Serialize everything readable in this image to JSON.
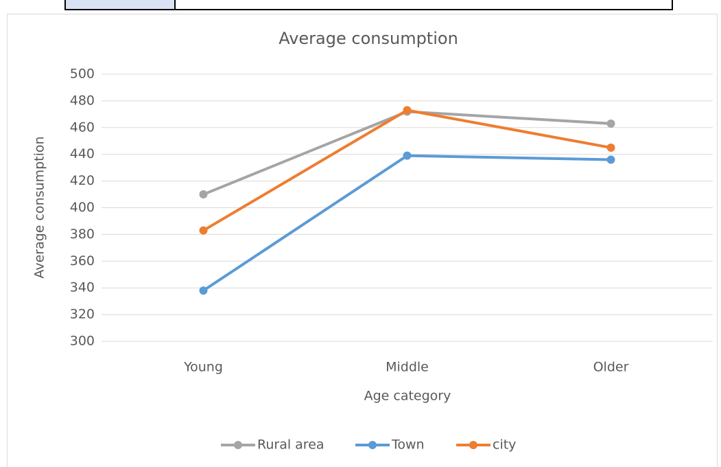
{
  "chart_data": {
    "type": "line",
    "title": "Average consumption",
    "x_label": "Age category",
    "y_label": "Average consumption",
    "categories": [
      "Young",
      "Middle",
      "Older"
    ],
    "series": [
      {
        "name": "Rural area",
        "color": "#a5a5a5",
        "values": [
          410,
          472,
          463
        ]
      },
      {
        "name": "Town",
        "color": "#5b9bd5",
        "values": [
          338,
          439,
          436
        ]
      },
      {
        "name": "city",
        "color": "#ed7d31",
        "values": [
          383,
          473,
          445
        ]
      }
    ],
    "ylim": [
      300,
      500
    ],
    "yticks": [
      300,
      320,
      340,
      360,
      380,
      400,
      420,
      440,
      460,
      480,
      500
    ],
    "grid": true,
    "legend": "bottom"
  }
}
